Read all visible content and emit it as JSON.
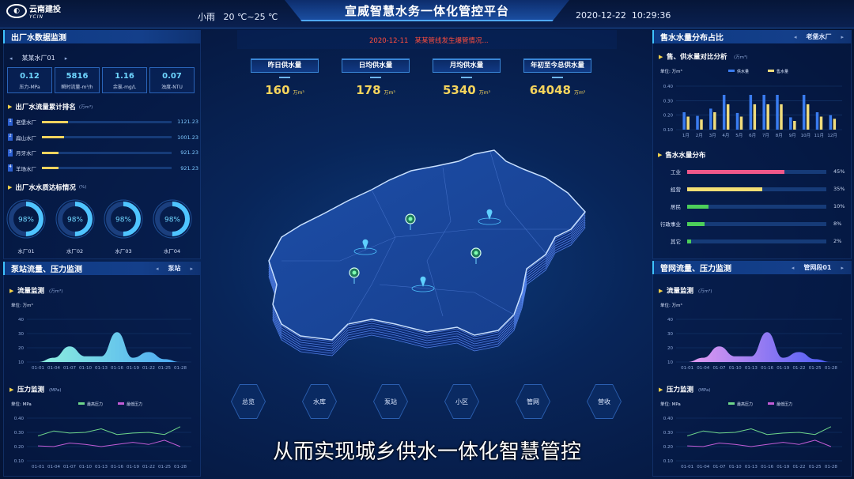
{
  "header": {
    "logo_text": "云南建投",
    "logo_sub": "YCIN",
    "title": "宣威智慧水务一体化管控平台",
    "weather": "小雨",
    "temperature": "20 ℃~25 ℃",
    "datetime": "2020-12-22  10:29:36"
  },
  "left": {
    "panel1": {
      "title": "出厂水数据监测",
      "selector": "某某水厂01",
      "kpis": [
        {
          "value": "0.12",
          "label": "压力-MPa"
        },
        {
          "value": "5816",
          "label": "瞬时流量-m³/h"
        },
        {
          "value": "1.16",
          "label": "余氯-mg/L"
        },
        {
          "value": "0.07",
          "label": "浊度-NTU"
        }
      ],
      "ranking": {
        "title": "出厂水流量累计排名",
        "unit": "(万m³)",
        "items": [
          {
            "rank": "1",
            "name": "老堡水厂",
            "value": "1121.23",
            "fraction": 0.2
          },
          {
            "rank": "2",
            "name": "扁山水厂",
            "value": "1001.23",
            "fraction": 0.17
          },
          {
            "rank": "3",
            "name": "月牙水厂",
            "value": "921.23",
            "fraction": 0.13
          },
          {
            "rank": "4",
            "name": "羊场水厂",
            "value": "921.23",
            "fraction": 0.13
          }
        ]
      },
      "quality": {
        "title": "出厂水水质达标情况",
        "unit": "(%)",
        "items": [
          {
            "value": "98%",
            "percent": 98,
            "label": "水厂01"
          },
          {
            "value": "98%",
            "percent": 98,
            "label": "水厂02"
          },
          {
            "value": "98%",
            "percent": 98,
            "label": "水厂03"
          },
          {
            "value": "98%",
            "percent": 98,
            "label": "水厂04"
          }
        ]
      }
    },
    "panel2": {
      "title": "泵站流量、压力监测",
      "selector": "泵站"
    }
  },
  "center": {
    "alert": "2020-12-11   某某管线发生爆管情况...",
    "stats": [
      {
        "label": "昨日供水量",
        "value": "160",
        "unit": "万m³"
      },
      {
        "label": "日均供水量",
        "value": "178",
        "unit": "万m³"
      },
      {
        "label": "月均供水量",
        "value": "5340",
        "unit": "万m³"
      },
      {
        "label": "年初至今总供水量",
        "value": "64048",
        "unit": "万m³"
      }
    ],
    "nav": [
      "总览",
      "水库",
      "泵站",
      "小区",
      "管网",
      "营收"
    ],
    "subtitle": "从而实现城乡供水一体化智慧管控"
  },
  "right": {
    "panel1": {
      "title": "售水水量分布占比",
      "selector": "老堡水厂",
      "dist_title": "售水水量分布",
      "dist": [
        {
          "label": "工业",
          "value": "45%",
          "percent": 45,
          "color": "#f0588a"
        },
        {
          "label": "经营",
          "value": "35%",
          "percent": 35,
          "color": "#f4df74"
        },
        {
          "label": "居民",
          "value": "10%",
          "percent": 10,
          "color": "#4ccf5a"
        },
        {
          "label": "行政事业",
          "value": "8%",
          "percent": 8,
          "color": "#4ccf5a"
        },
        {
          "label": "其它",
          "value": "2%",
          "percent": 2,
          "color": "#4ccf5a"
        }
      ]
    },
    "panel2": {
      "title": "管网流量、压力监测",
      "selector": "管网段01"
    }
  },
  "chart_data": [
    {
      "id": "supply-sales",
      "type": "bar",
      "title": "售、供水量对比分析",
      "title_unit": "(万m³)",
      "unit_label": "单位: 万m³",
      "categories": [
        "1月",
        "2月",
        "3月",
        "4月",
        "5月",
        "6月",
        "7月",
        "8月",
        "9月",
        "10月",
        "11月",
        "12月"
      ],
      "ylim": [
        0.1,
        0.4
      ],
      "yticks": [
        "0.10",
        "0.20",
        "0.30",
        "0.40"
      ],
      "grid": true,
      "legend": "top-center",
      "series": [
        {
          "name": "供水量",
          "color": "#3a7cf0",
          "values": [
            0.22,
            0.195,
            0.245,
            0.34,
            0.215,
            0.34,
            0.34,
            0.34,
            0.185,
            0.34,
            0.22,
            0.2
          ]
        },
        {
          "name": "售水量",
          "color": "#f0dc7c",
          "values": [
            0.19,
            0.17,
            0.22,
            0.275,
            0.19,
            0.275,
            0.275,
            0.275,
            0.16,
            0.275,
            0.19,
            0.175
          ]
        }
      ]
    },
    {
      "id": "pump-flow",
      "type": "area",
      "title": "流量监测",
      "title_unit": "(万m³)",
      "unit_label": "单位: 万m³",
      "categories": [
        "01-01",
        "01-04",
        "01-07",
        "01-10",
        "01-13",
        "01-16",
        "01-19",
        "01-22",
        "01-25",
        "01-28"
      ],
      "ylim": [
        10,
        40
      ],
      "yticks": [
        "10",
        "20",
        "30",
        "40"
      ],
      "grid": true,
      "gradient": [
        "#8ef0de",
        "#4aa8f5"
      ],
      "values": [
        10,
        13,
        21,
        14,
        14,
        31,
        13,
        17,
        12,
        10
      ]
    },
    {
      "id": "pump-pressure",
      "type": "line",
      "title": "压力监测",
      "title_unit": "(MPa)",
      "unit_label": "单位: MPa",
      "categories": [
        "01-01",
        "01-04",
        "01-07",
        "01-10",
        "01-13",
        "01-16",
        "01-19",
        "01-22",
        "01-25",
        "01-28"
      ],
      "ylim": [
        0.1,
        0.4
      ],
      "yticks": [
        "0.10",
        "0.20",
        "0.30",
        "0.40"
      ],
      "grid": true,
      "legend": "top-center",
      "series": [
        {
          "name": "最高压力",
          "color": "#6fd68a",
          "values": [
            0.275,
            0.31,
            0.295,
            0.3,
            0.325,
            0.285,
            0.295,
            0.3,
            0.285,
            0.34
          ]
        },
        {
          "name": "最低压力",
          "color": "#c35cd6",
          "values": [
            0.205,
            0.2,
            0.225,
            0.215,
            0.2,
            0.215,
            0.23,
            0.215,
            0.245,
            0.2
          ]
        }
      ]
    },
    {
      "id": "pipe-flow",
      "type": "area",
      "title": "流量监测",
      "title_unit": "(万m³)",
      "unit_label": "单位: 万m³",
      "categories": [
        "01-01",
        "01-04",
        "01-07",
        "01-10",
        "01-13",
        "01-16",
        "01-19",
        "01-22",
        "01-25",
        "01-28"
      ],
      "ylim": [
        10,
        40
      ],
      "yticks": [
        "10",
        "20",
        "30",
        "40"
      ],
      "grid": true,
      "gradient": [
        "#e59cf0",
        "#4a5cf5"
      ],
      "values": [
        10,
        13,
        21,
        14,
        14,
        31,
        13,
        17,
        12,
        10
      ]
    },
    {
      "id": "pipe-pressure",
      "type": "line",
      "title": "压力监测",
      "title_unit": "(MPa)",
      "unit_label": "单位: MPa",
      "categories": [
        "01-01",
        "01-04",
        "01-07",
        "01-10",
        "01-13",
        "01-16",
        "01-19",
        "01-22",
        "01-25",
        "01-28"
      ],
      "ylim": [
        0.1,
        0.4
      ],
      "yticks": [
        "0.10",
        "0.20",
        "0.30",
        "0.40"
      ],
      "grid": true,
      "legend": "top-center",
      "series": [
        {
          "name": "最高压力",
          "color": "#6fd68a",
          "values": [
            0.275,
            0.31,
            0.295,
            0.3,
            0.325,
            0.285,
            0.295,
            0.3,
            0.285,
            0.34
          ]
        },
        {
          "name": "最低压力",
          "color": "#c35cd6",
          "values": [
            0.205,
            0.2,
            0.225,
            0.215,
            0.2,
            0.215,
            0.23,
            0.215,
            0.245,
            0.2
          ]
        }
      ]
    }
  ]
}
